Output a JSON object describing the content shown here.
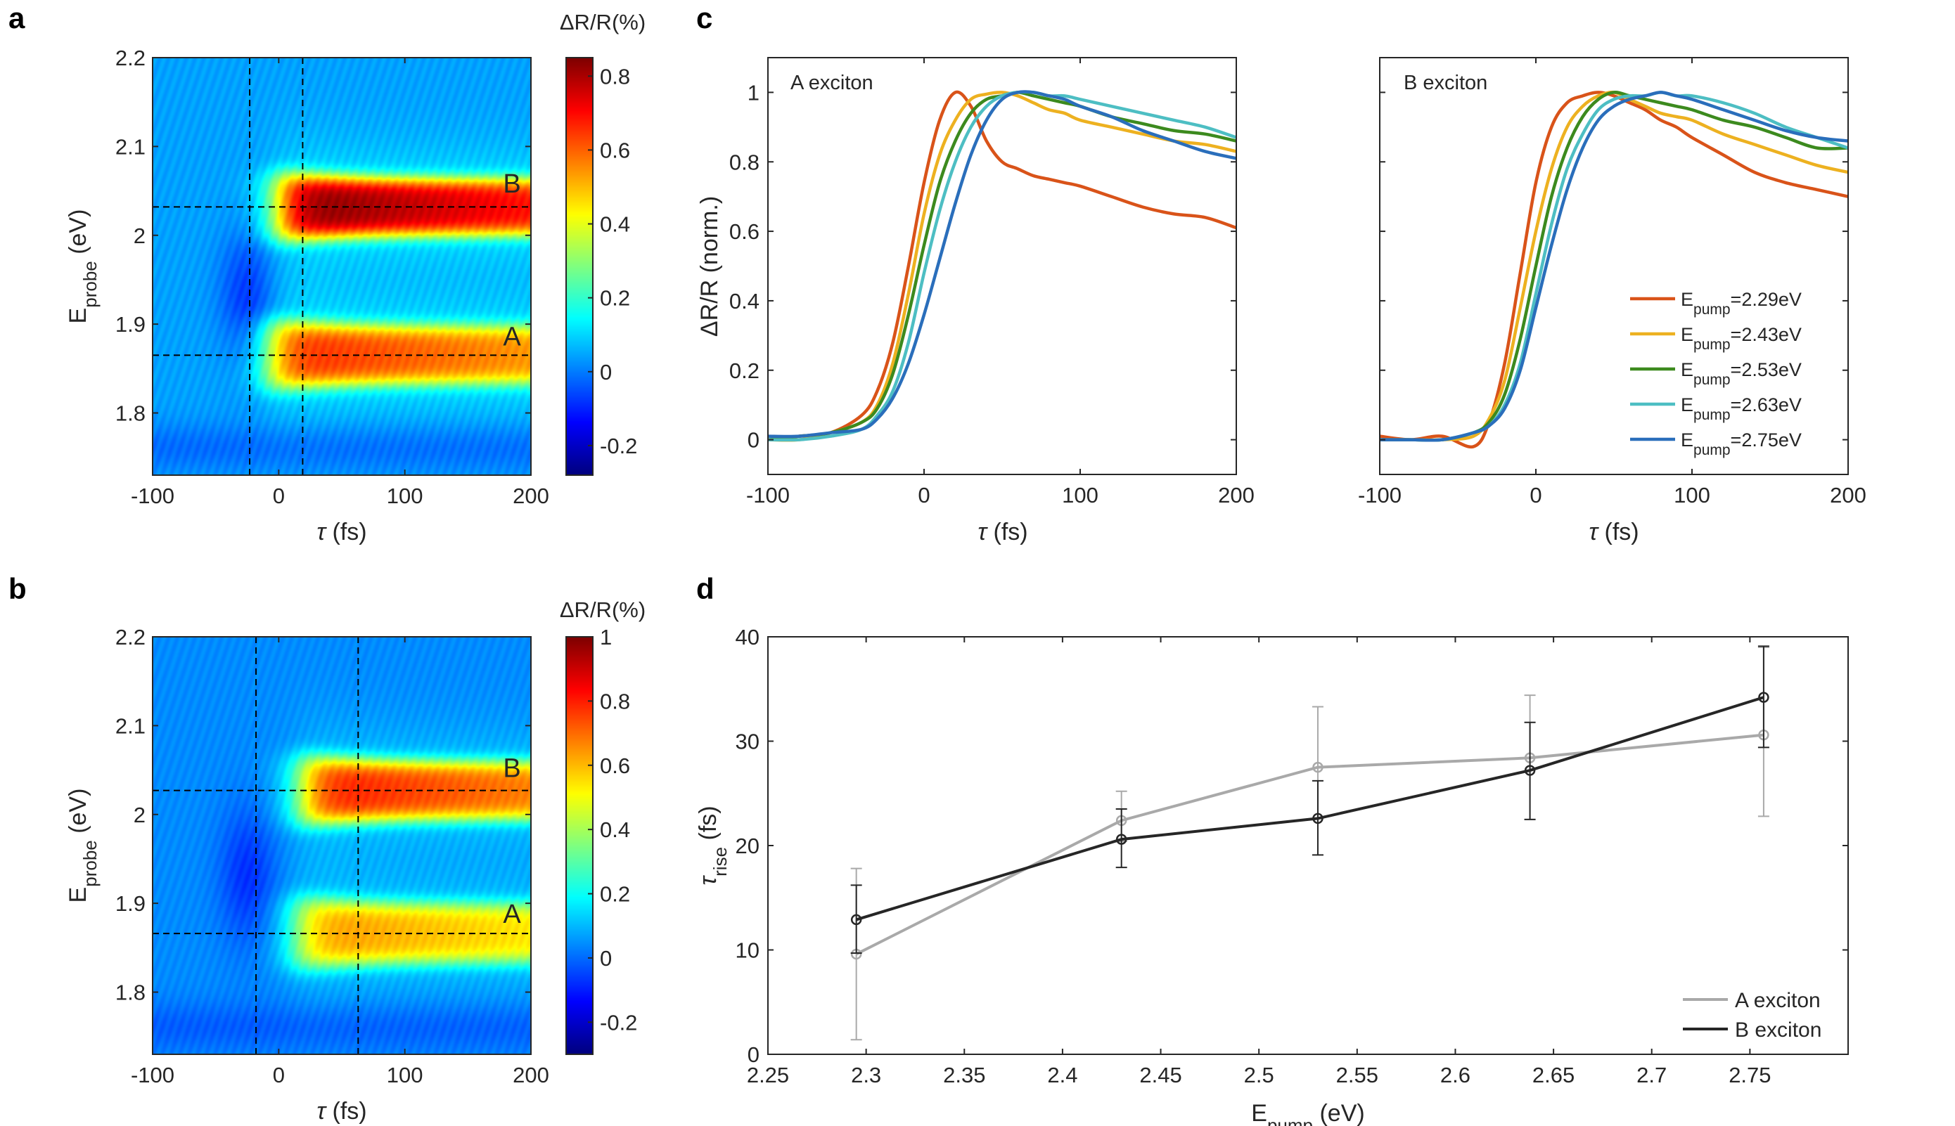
{
  "chart_data": [
    {
      "id": "a",
      "type": "heatmap",
      "panel_label": "a",
      "xlabel_sym": "τ",
      "xlabel": " (fs)",
      "ylabel_main": "E",
      "ylabel_sub": "probe",
      "ylabel_unit": " (eV)",
      "xlim": [
        -100,
        200
      ],
      "ylim": [
        1.73,
        2.2
      ],
      "xticks": [
        -100,
        0,
        100,
        200
      ],
      "yticks": [
        1.8,
        1.9,
        2,
        2.1,
        2.2
      ],
      "xtick_labels": [
        "-100",
        "0",
        "100",
        "200"
      ],
      "ytick_labels": [
        "1.8",
        "1.9",
        "2",
        "2.1",
        "2.2"
      ],
      "colorbar_title": "ΔR/R(%)",
      "clim": [
        -0.28,
        0.85
      ],
      "cbar_ticks": [
        -0.2,
        0,
        0.2,
        0.4,
        0.6,
        0.8
      ],
      "cbar_tick_labels": [
        "-0.2",
        "0",
        "0.2",
        "0.4",
        "0.6",
        "0.8"
      ],
      "vlines": [
        -23,
        19
      ],
      "hlines": [
        1.865,
        2.032
      ],
      "bands": [
        {
          "name": "B",
          "center": 2.032,
          "width": 0.033,
          "peak": 0.7,
          "onset": 0
        },
        {
          "name": "A",
          "center": 1.865,
          "width": 0.034,
          "peak": 0.52,
          "onset": -8
        }
      ],
      "band_labels": [
        {
          "text": "B",
          "x": 185,
          "y": 2.048
        },
        {
          "text": "A",
          "x": 185,
          "y": 1.876
        }
      ]
    },
    {
      "id": "b",
      "type": "heatmap",
      "panel_label": "b",
      "xlabel_sym": "τ",
      "xlabel": " (fs)",
      "ylabel_main": "E",
      "ylabel_sub": "probe",
      "ylabel_unit": " (eV)",
      "xlim": [
        -100,
        200
      ],
      "ylim": [
        1.73,
        2.2
      ],
      "xticks": [
        -100,
        0,
        100,
        200
      ],
      "yticks": [
        1.8,
        1.9,
        2,
        2.1,
        2.2
      ],
      "xtick_labels": [
        "-100",
        "0",
        "100",
        "200"
      ],
      "ytick_labels": [
        "1.8",
        "1.9",
        "2",
        "2.1",
        "2.2"
      ],
      "colorbar_title": "ΔR/R(%)",
      "clim": [
        -0.3,
        1.0
      ],
      "cbar_ticks": [
        -0.2,
        0,
        0.2,
        0.4,
        0.6,
        0.8,
        1
      ],
      "cbar_tick_labels": [
        "-0.2",
        "0",
        "0.2",
        "0.4",
        "0.6",
        "0.8",
        "1"
      ],
      "vlines": [
        -18,
        63
      ],
      "hlines": [
        1.866,
        2.027
      ],
      "bands": [
        {
          "name": "B",
          "center": 2.027,
          "width": 0.034,
          "peak": 0.66,
          "onset": 18
        },
        {
          "name": "A",
          "center": 1.866,
          "width": 0.035,
          "peak": 0.5,
          "onset": 14
        }
      ],
      "band_labels": [
        {
          "text": "B",
          "x": 185,
          "y": 2.042
        },
        {
          "text": "A",
          "x": 185,
          "y": 1.878
        }
      ]
    },
    {
      "id": "c-A",
      "type": "line",
      "panel_label": "c",
      "annotation": "A exciton",
      "xlabel_sym": "τ",
      "xlabel": " (fs)",
      "ylabel": "ΔR/R (norm.)",
      "xlim": [
        -100,
        200
      ],
      "ylim": [
        -0.1,
        1.1
      ],
      "xticks": [
        -100,
        0,
        100,
        200
      ],
      "xtick_labels": [
        "-100",
        "0",
        "100",
        "200"
      ],
      "yticks": [
        0,
        0.2,
        0.4,
        0.6,
        0.8,
        1
      ],
      "ytick_labels": [
        "0",
        "0.2",
        "0.4",
        "0.6",
        "0.8",
        "1"
      ],
      "x": [
        -100,
        -80,
        -60,
        -40,
        -30,
        -20,
        -10,
        0,
        10,
        20,
        30,
        40,
        50,
        60,
        70,
        80,
        90,
        100,
        120,
        140,
        160,
        180,
        200
      ],
      "series": [
        {
          "name": "2.29eV",
          "color": "#D95319",
          "values": [
            0.0,
            0.01,
            0.02,
            0.07,
            0.14,
            0.28,
            0.5,
            0.74,
            0.92,
            1.0,
            0.96,
            0.86,
            0.8,
            0.78,
            0.76,
            0.75,
            0.74,
            0.73,
            0.7,
            0.67,
            0.65,
            0.64,
            0.61
          ]
        },
        {
          "name": "2.43eV",
          "color": "#EDB120",
          "values": [
            0.0,
            0.0,
            0.02,
            0.05,
            0.1,
            0.22,
            0.42,
            0.65,
            0.82,
            0.92,
            0.98,
            0.995,
            1.0,
            0.99,
            0.97,
            0.95,
            0.94,
            0.92,
            0.9,
            0.88,
            0.86,
            0.85,
            0.83
          ]
        },
        {
          "name": "2.53eV",
          "color": "#3C8A1E",
          "values": [
            0.0,
            0.01,
            0.02,
            0.05,
            0.09,
            0.19,
            0.36,
            0.56,
            0.74,
            0.86,
            0.94,
            0.98,
            0.99,
            1.0,
            0.99,
            0.98,
            0.97,
            0.96,
            0.93,
            0.91,
            0.89,
            0.88,
            0.86
          ]
        },
        {
          "name": "2.63eV",
          "color": "#4DBEC3",
          "values": [
            0.0,
            0.0,
            0.01,
            0.03,
            0.07,
            0.14,
            0.28,
            0.48,
            0.66,
            0.8,
            0.9,
            0.96,
            0.99,
            1.0,
            1.0,
            0.99,
            0.99,
            0.98,
            0.96,
            0.94,
            0.92,
            0.9,
            0.87
          ]
        },
        {
          "name": "2.75eV",
          "color": "#2A6EBB",
          "values": [
            0.01,
            0.01,
            0.02,
            0.03,
            0.06,
            0.12,
            0.22,
            0.36,
            0.52,
            0.68,
            0.82,
            0.92,
            0.98,
            1.0,
            1.0,
            0.99,
            0.98,
            0.96,
            0.93,
            0.89,
            0.86,
            0.83,
            0.81
          ]
        }
      ]
    },
    {
      "id": "c-B",
      "type": "line",
      "panel_label": "",
      "annotation": "B exciton",
      "xlabel_sym": "τ",
      "xlabel": " (fs)",
      "ylabel": "",
      "xlim": [
        -100,
        200
      ],
      "ylim": [
        -0.1,
        1.1
      ],
      "xticks": [
        -100,
        0,
        100,
        200
      ],
      "xtick_labels": [
        "-100",
        "0",
        "100",
        "200"
      ],
      "yticks": [
        0,
        0.2,
        0.4,
        0.6,
        0.8,
        1
      ],
      "ytick_labels": [],
      "x": [
        -100,
        -80,
        -60,
        -40,
        -30,
        -20,
        -10,
        0,
        10,
        20,
        30,
        40,
        50,
        60,
        70,
        80,
        90,
        100,
        120,
        140,
        160,
        180,
        200
      ],
      "series": [
        {
          "name": "2.29eV",
          "color": "#D95319",
          "values": [
            0.01,
            0.0,
            0.01,
            -0.02,
            0.05,
            0.22,
            0.48,
            0.74,
            0.9,
            0.97,
            0.99,
            1.0,
            0.99,
            0.97,
            0.95,
            0.92,
            0.9,
            0.87,
            0.82,
            0.77,
            0.74,
            0.72,
            0.7
          ]
        },
        {
          "name": "2.43eV",
          "color": "#EDB120",
          "values": [
            0.0,
            0.0,
            0.0,
            0.01,
            0.06,
            0.17,
            0.38,
            0.6,
            0.78,
            0.9,
            0.96,
            0.99,
            1.0,
            0.98,
            0.96,
            0.94,
            0.93,
            0.92,
            0.88,
            0.85,
            0.82,
            0.79,
            0.77
          ]
        },
        {
          "name": "2.53eV",
          "color": "#3C8A1E",
          "values": [
            0.0,
            0.0,
            0.0,
            0.02,
            0.05,
            0.13,
            0.29,
            0.5,
            0.7,
            0.84,
            0.93,
            0.98,
            1.0,
            0.99,
            0.98,
            0.97,
            0.96,
            0.95,
            0.92,
            0.9,
            0.87,
            0.84,
            0.84
          ]
        },
        {
          "name": "2.63eV",
          "color": "#4DBEC3",
          "values": [
            0.0,
            0.0,
            0.0,
            0.02,
            0.04,
            0.1,
            0.22,
            0.42,
            0.62,
            0.78,
            0.88,
            0.95,
            0.98,
            0.99,
            0.99,
            1.0,
            0.99,
            0.99,
            0.97,
            0.94,
            0.9,
            0.87,
            0.84
          ]
        },
        {
          "name": "2.75eV",
          "color": "#2A6EBB",
          "values": [
            0.0,
            0.0,
            0.0,
            0.02,
            0.04,
            0.09,
            0.2,
            0.38,
            0.56,
            0.72,
            0.84,
            0.92,
            0.96,
            0.98,
            0.99,
            1.0,
            0.99,
            0.98,
            0.95,
            0.92,
            0.89,
            0.87,
            0.86
          ]
        }
      ],
      "legend": {
        "position": "lower-right",
        "prefix": "E",
        "sub": "pump",
        "entries": [
          "=2.29eV",
          "=2.43eV",
          "=2.53eV",
          "=2.63eV",
          "=2.75eV"
        ]
      }
    },
    {
      "id": "d",
      "type": "line",
      "panel_label": "d",
      "xlabel_main": "E",
      "xlabel_sub": "pump",
      "xlabel_unit": " (eV)",
      "ylabel_main": "τ",
      "ylabel_sub": "rise",
      "ylabel_unit": " (fs)",
      "xlim": [
        2.25,
        2.8
      ],
      "ylim": [
        0,
        40
      ],
      "xticks": [
        2.25,
        2.3,
        2.35,
        2.4,
        2.45,
        2.5,
        2.55,
        2.6,
        2.65,
        2.7,
        2.75
      ],
      "xtick_labels": [
        "2.25",
        "2.3",
        "2.35",
        "2.4",
        "2.45",
        "2.5",
        "2.55",
        "2.6",
        "2.65",
        "2.7",
        "2.75"
      ],
      "yticks": [
        0,
        10,
        20,
        30,
        40
      ],
      "ytick_labels": [
        "0",
        "10",
        "20",
        "30",
        "40"
      ],
      "x": [
        2.295,
        2.43,
        2.53,
        2.638,
        2.757
      ],
      "series": [
        {
          "name": "A exciton",
          "color": "#A9A9A9",
          "values": [
            9.6,
            22.4,
            27.5,
            28.4,
            30.6
          ],
          "err_low": [
            8.2,
            2.0,
            4.9,
            5.9,
            7.8
          ],
          "err_high": [
            8.2,
            2.8,
            5.8,
            6.0,
            8.4
          ]
        },
        {
          "name": "B exciton",
          "color": "#262626",
          "values": [
            12.9,
            20.6,
            22.6,
            27.2,
            34.2
          ],
          "err_low": [
            3.2,
            2.7,
            3.5,
            4.7,
            4.8
          ],
          "err_high": [
            3.3,
            2.9,
            3.6,
            4.6,
            4.9
          ]
        }
      ],
      "legend": {
        "position": "lower-right",
        "entries": [
          "A exciton",
          "B exciton"
        ]
      }
    }
  ]
}
